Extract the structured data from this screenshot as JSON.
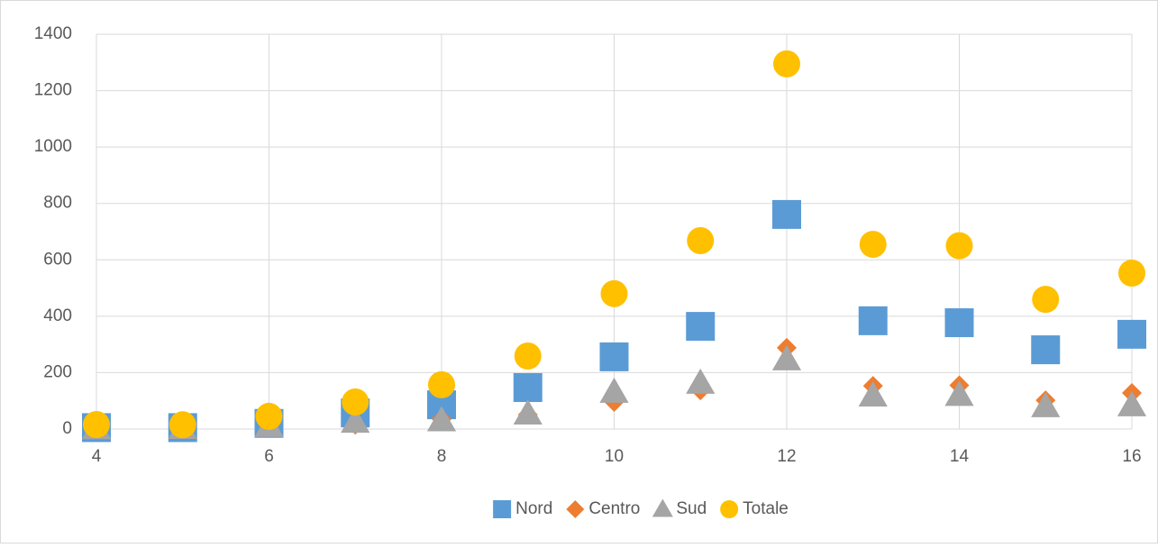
{
  "chart_data": {
    "type": "scatter",
    "x": [
      4,
      5,
      6,
      7,
      8,
      9,
      10,
      11,
      12,
      13,
      14,
      15,
      16
    ],
    "series": [
      {
        "name": "Nord",
        "color": "#5b9bd5",
        "marker": "square",
        "values": [
          5,
          5,
          20,
          57,
          86,
          147,
          256,
          364,
          761,
          384,
          377,
          281,
          336
        ]
      },
      {
        "name": "Centro",
        "color": "#ed7d31",
        "marker": "diamond",
        "values": [
          3,
          3,
          10,
          15,
          35,
          51,
          96,
          137,
          288,
          153,
          155,
          102,
          128
        ]
      },
      {
        "name": "Sud",
        "color": "#a5a5a5",
        "marker": "triangle",
        "values": [
          2,
          3,
          10,
          25,
          30,
          54,
          131,
          163,
          246,
          118,
          120,
          80,
          83
        ]
      },
      {
        "name": "Totale",
        "color": "#ffc000",
        "marker": "circle",
        "values": [
          16,
          15,
          45,
          96,
          157,
          259,
          480,
          668,
          1295,
          655,
          650,
          460,
          553
        ]
      }
    ],
    "xlim": [
      4,
      16
    ],
    "xticks": [
      4,
      6,
      8,
      10,
      12,
      14,
      16
    ],
    "ylim": [
      0,
      1400
    ],
    "yticks": [
      0,
      200,
      400,
      600,
      800,
      1000,
      1200,
      1400
    ],
    "grid": true,
    "legend": "bottom"
  }
}
